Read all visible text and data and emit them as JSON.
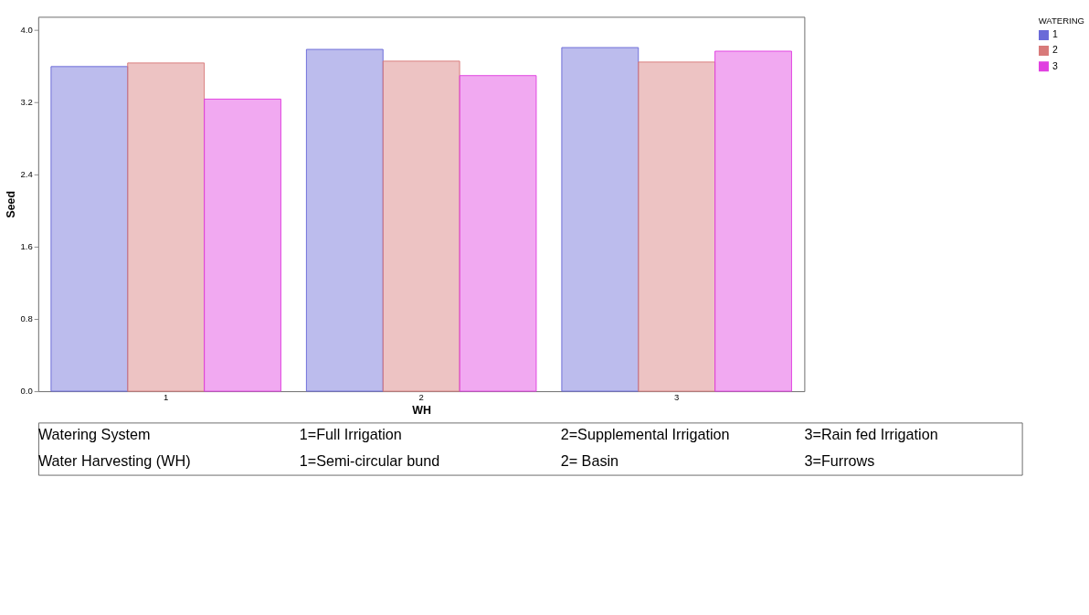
{
  "chart_data": {
    "type": "bar",
    "xlabel": "WH",
    "ylabel": "Seed",
    "legend_title": "WATERING",
    "categories": [
      "1",
      "2",
      "3"
    ],
    "series": [
      {
        "name": "1",
        "color": "#6a6ad8",
        "values": [
          3.59,
          3.78,
          3.8
        ]
      },
      {
        "name": "2",
        "color": "#d87a7a",
        "values": [
          3.63,
          3.65,
          3.64
        ]
      },
      {
        "name": "3",
        "color": "#e040e0",
        "values": [
          3.23,
          3.49,
          3.76
        ]
      }
    ],
    "ylim": [
      0,
      4.14
    ],
    "yticks": [
      {
        "value": 0,
        "label": "0.0"
      },
      0.8,
      1.6,
      2.4,
      3.2,
      {
        "value": 4,
        "label": "4.0"
      }
    ],
    "grid": false,
    "legend": "right",
    "annotations": [
      "Watering System",
      "1=Full Irrigation",
      "2=Supplemental Irrigation",
      "3=Rain fed Irrigation",
      "Water Harvesting (WH)",
      "1=Semi-circular bund",
      "2= Basin",
      "3=Furrows"
    ]
  }
}
